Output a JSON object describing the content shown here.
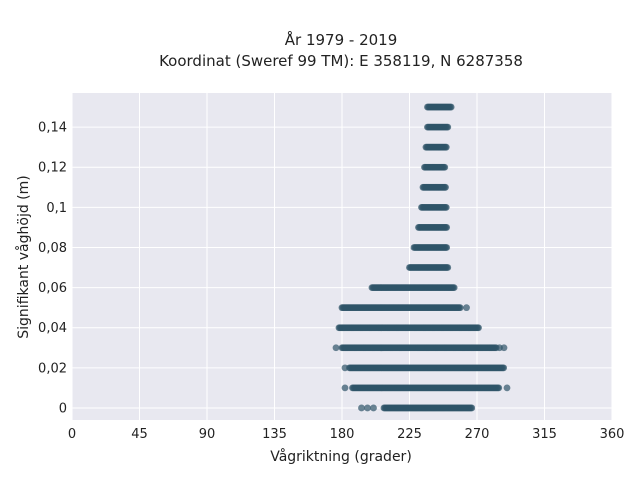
{
  "chart_data": {
    "type": "scatter",
    "title_lines": [
      "År 1979 - 2019",
      "Koordinat (Sweref 99 TM): E 358119, N 6287358"
    ],
    "xlabel": "Vågriktning (grader)",
    "ylabel": "Signifikant våghöjd (m)",
    "xlim": [
      0,
      360
    ],
    "ylim": [
      -0.006,
      0.157
    ],
    "xticks": [
      0,
      45,
      90,
      135,
      180,
      225,
      270,
      315,
      360
    ],
    "xtick_labels": [
      "0",
      "45",
      "90",
      "135",
      "180",
      "225",
      "270",
      "315",
      "360"
    ],
    "yticks": [
      0,
      0.02,
      0.04,
      0.06,
      0.08,
      0.1,
      0.12,
      0.14
    ],
    "ytick_labels": [
      "0",
      "0,02",
      "0,04",
      "0,06",
      "0,08",
      "0,1",
      "0,12",
      "0,14"
    ],
    "grid": true,
    "background": "#e8e8f0",
    "marker_color": "#2f5468",
    "bands": [
      {
        "y": 0.0,
        "x_min": 208,
        "x_max": 267
      },
      {
        "y": 0.01,
        "x_min": 187,
        "x_max": 285
      },
      {
        "y": 0.02,
        "x_min": 185,
        "x_max": 288
      },
      {
        "y": 0.03,
        "x_min": 180,
        "x_max": 283
      },
      {
        "y": 0.04,
        "x_min": 178,
        "x_max": 271
      },
      {
        "y": 0.05,
        "x_min": 180,
        "x_max": 259
      },
      {
        "y": 0.06,
        "x_min": 200,
        "x_max": 255
      },
      {
        "y": 0.07,
        "x_min": 225,
        "x_max": 251
      },
      {
        "y": 0.08,
        "x_min": 228,
        "x_max": 250
      },
      {
        "y": 0.09,
        "x_min": 231,
        "x_max": 250
      },
      {
        "y": 0.1,
        "x_min": 233,
        "x_max": 250
      },
      {
        "y": 0.11,
        "x_min": 234,
        "x_max": 249
      },
      {
        "y": 0.12,
        "x_min": 235,
        "x_max": 249
      },
      {
        "y": 0.13,
        "x_min": 236,
        "x_max": 250
      },
      {
        "y": 0.14,
        "x_min": 237,
        "x_max": 251
      },
      {
        "y": 0.15,
        "x_min": 237,
        "x_max": 253
      }
    ],
    "outliers": [
      {
        "x": 193,
        "y": 0.0
      },
      {
        "x": 197,
        "y": 0.0
      },
      {
        "x": 201,
        "y": 0.0
      },
      {
        "x": 182,
        "y": 0.01
      },
      {
        "x": 290,
        "y": 0.01
      },
      {
        "x": 182,
        "y": 0.02
      },
      {
        "x": 176,
        "y": 0.03
      },
      {
        "x": 285,
        "y": 0.03
      },
      {
        "x": 288,
        "y": 0.03
      },
      {
        "x": 263,
        "y": 0.05
      }
    ]
  }
}
